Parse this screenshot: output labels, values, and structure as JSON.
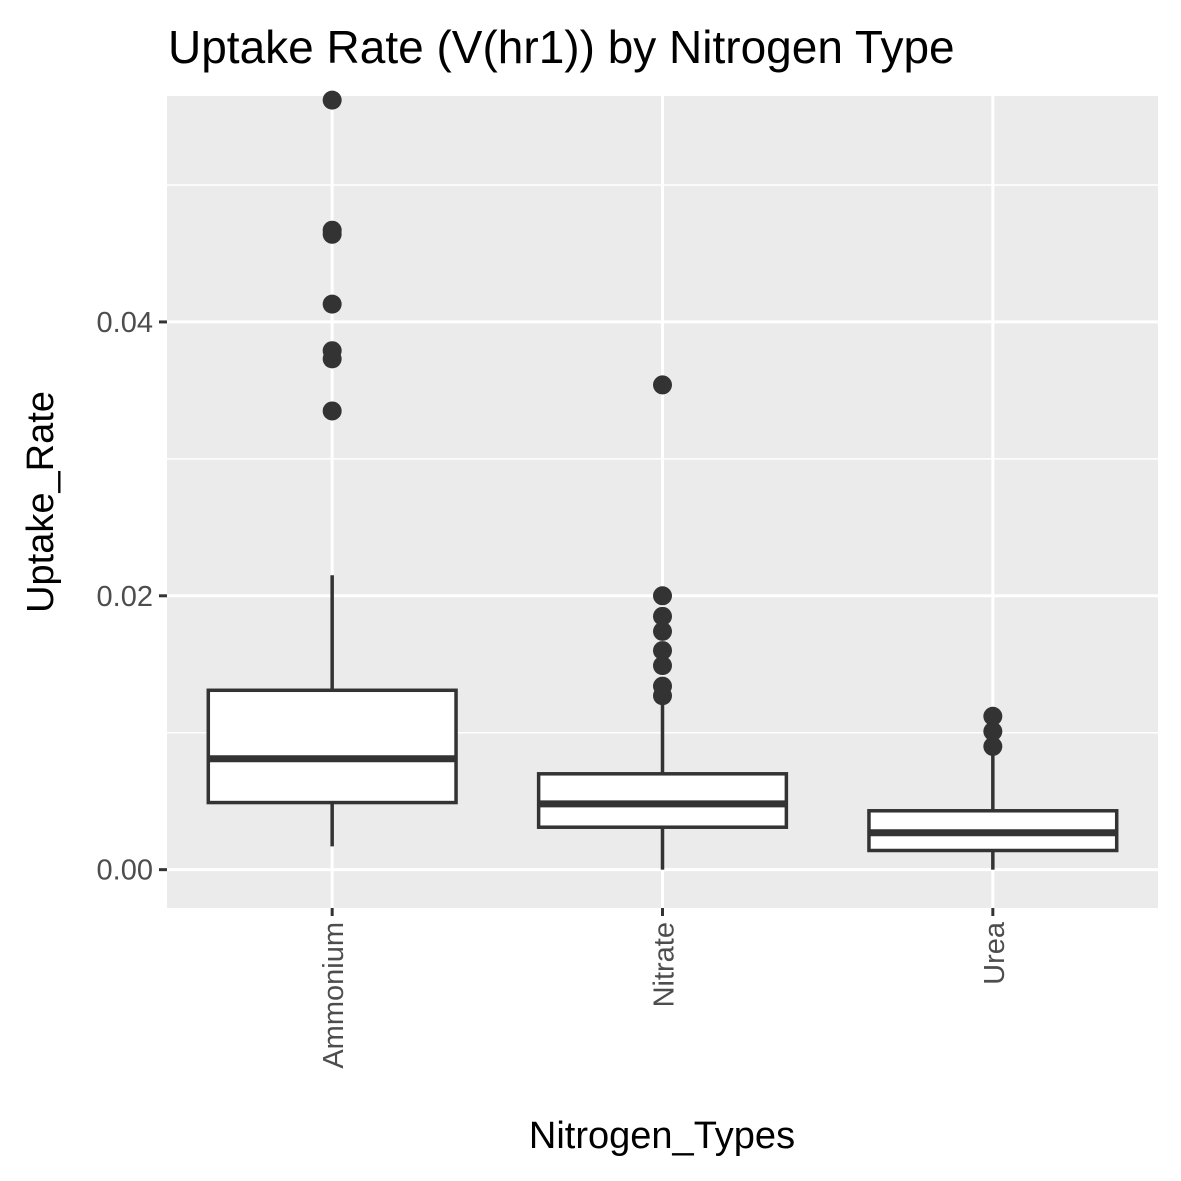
{
  "chart_data": {
    "type": "boxplot",
    "title": "Uptake Rate (V(hr1)) by Nitrogen Type",
    "xlabel": "Nitrogen_Types",
    "ylabel": "Uptake_Rate",
    "categories": [
      "Ammonium",
      "Nitrate",
      "Urea"
    ],
    "ylim": [
      -0.0028,
      0.0565
    ],
    "yticks": [
      0.0,
      0.02,
      0.04
    ],
    "ytick_labels": [
      "0.00",
      "0.02",
      "0.04"
    ],
    "grid": true,
    "legend": "none",
    "boxes": [
      {
        "category": "Ammonium",
        "whisker_low": 0.0017,
        "q1": 0.0049,
        "median": 0.0081,
        "q3": 0.0131,
        "whisker_high": 0.0215,
        "outliers": [
          0.0335,
          0.0373,
          0.0379,
          0.0413,
          0.0464,
          0.0467,
          0.0562
        ]
      },
      {
        "category": "Nitrate",
        "whisker_low": 0.0,
        "q1": 0.0031,
        "median": 0.0048,
        "q3": 0.007,
        "whisker_high": 0.0122,
        "outliers": [
          0.0127,
          0.0134,
          0.0149,
          0.016,
          0.0174,
          0.0185,
          0.02,
          0.0354
        ]
      },
      {
        "category": "Urea",
        "whisker_low": 0.0,
        "q1": 0.0014,
        "median": 0.0027,
        "q3": 0.0043,
        "whisker_high": 0.0087,
        "outliers": [
          0.009,
          0.0101,
          0.0112
        ]
      }
    ]
  }
}
